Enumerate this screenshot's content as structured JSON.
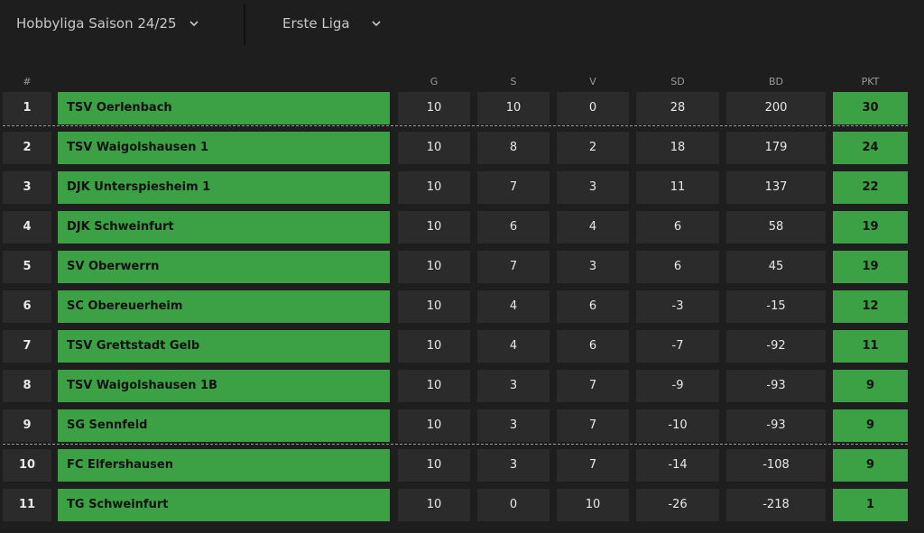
{
  "header": {
    "season_label": "Hobbyliga Saison 24/25",
    "league_label": "Erste Liga"
  },
  "columns": {
    "rank": "#",
    "games": "G",
    "wins": "S",
    "losses": "V",
    "set_diff": "SD",
    "ball_diff": "BD",
    "points": "PKT"
  },
  "rows": [
    {
      "rank": "1",
      "team": "TSV Oerlenbach",
      "g": "10",
      "s": "10",
      "v": "0",
      "sd": "28",
      "bd": "200",
      "pkt": "30"
    },
    {
      "rank": "2",
      "team": "TSV Waigolshausen 1",
      "g": "10",
      "s": "8",
      "v": "2",
      "sd": "18",
      "bd": "179",
      "pkt": "24"
    },
    {
      "rank": "3",
      "team": "DJK Unterspiesheim 1",
      "g": "10",
      "s": "7",
      "v": "3",
      "sd": "11",
      "bd": "137",
      "pkt": "22"
    },
    {
      "rank": "4",
      "team": "DJK Schweinfurt",
      "g": "10",
      "s": "6",
      "v": "4",
      "sd": "6",
      "bd": "58",
      "pkt": "19"
    },
    {
      "rank": "5",
      "team": "SV Oberwerrn",
      "g": "10",
      "s": "7",
      "v": "3",
      "sd": "6",
      "bd": "45",
      "pkt": "19"
    },
    {
      "rank": "6",
      "team": "SC Obereuerheim",
      "g": "10",
      "s": "4",
      "v": "6",
      "sd": "-3",
      "bd": "-15",
      "pkt": "12"
    },
    {
      "rank": "7",
      "team": "TSV Grettstadt Gelb",
      "g": "10",
      "s": "4",
      "v": "6",
      "sd": "-7",
      "bd": "-92",
      "pkt": "11"
    },
    {
      "rank": "8",
      "team": "TSV Waigolshausen 1B",
      "g": "10",
      "s": "3",
      "v": "7",
      "sd": "-9",
      "bd": "-93",
      "pkt": "9"
    },
    {
      "rank": "9",
      "team": "SG Sennfeld",
      "g": "10",
      "s": "3",
      "v": "7",
      "sd": "-10",
      "bd": "-93",
      "pkt": "9"
    },
    {
      "rank": "10",
      "team": "FC Elfershausen",
      "g": "10",
      "s": "3",
      "v": "7",
      "sd": "-14",
      "bd": "-108",
      "pkt": "9"
    },
    {
      "rank": "11",
      "team": "TG Schweinfurt",
      "g": "10",
      "s": "0",
      "v": "10",
      "sd": "-26",
      "bd": "-218",
      "pkt": "1"
    }
  ],
  "colors": {
    "background": "#1e1e1e",
    "cell": "#2b2b2b",
    "accent_green": "#3ca044",
    "text": "#e8e8e8",
    "muted_text": "#9a9a9a"
  },
  "icons": {
    "dropdown": "chevron-down-icon"
  }
}
